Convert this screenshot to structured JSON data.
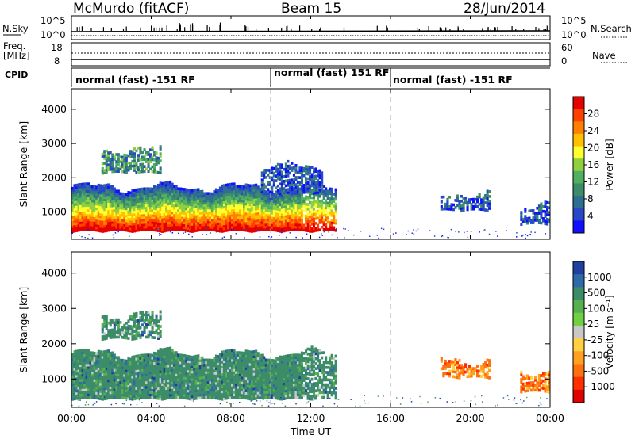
{
  "header": {
    "station": "McMurdo (fitACF)",
    "beam": "Beam 15",
    "date": "28/Jun/2014"
  },
  "panels": {
    "nsky": {
      "left_label": "N.Sky",
      "left_ticks": [
        "10^5",
        "10^0"
      ],
      "right_label": "N.Search",
      "right_ticks": [
        "10^5",
        "10^0"
      ]
    },
    "freq": {
      "left_label_1": "Freq.",
      "left_label_2": "[MHz]",
      "left_ticks": [
        "18",
        "8"
      ],
      "right_label": "Nave",
      "right_ticks": [
        "60",
        "0"
      ]
    },
    "cpid": {
      "label": "CPID",
      "segments": [
        {
          "text": "normal (fast) -151 RF",
          "start_h": 0,
          "end_h": 10
        },
        {
          "text": "normal (fast) 151 RF",
          "start_h": 10,
          "end_h": 16
        },
        {
          "text": "normal (fast) -151 RF",
          "start_h": 16,
          "end_h": 24
        }
      ]
    }
  },
  "colorbars": {
    "power": {
      "title": "Power [dB]",
      "ticks": [
        "28",
        "24",
        "20",
        "16",
        "12",
        "8",
        "4"
      ],
      "colors": [
        "#e60000",
        "#ff4000",
        "#ff8000",
        "#ffc000",
        "#ffff30",
        "#90d040",
        "#50b060",
        "#3c8c6a",
        "#2e6e90",
        "#2848c8",
        "#1010ff"
      ]
    },
    "velocity": {
      "title": "Velocity [m s⁻¹]",
      "ticks": [
        "1000",
        "500",
        "100",
        "25",
        "-25",
        "-100",
        "-500",
        "-1000"
      ],
      "colors": [
        "#2040a0",
        "#2e6aa8",
        "#3c8c6a",
        "#56b050",
        "#70d040",
        "#c8c8c8",
        "#ffd040",
        "#ffa020",
        "#ff7010",
        "#ff3000",
        "#e00000"
      ]
    }
  },
  "chart_data": {
    "type": "heatmap",
    "xlabel": "Time UT",
    "ylabel": "Slant Range [km]",
    "x_ticks": [
      "00:00",
      "04:00",
      "08:00",
      "12:00",
      "16:00",
      "20:00",
      "00:00"
    ],
    "y_ticks": [
      "1000",
      "2000",
      "3000",
      "4000"
    ],
    "xlim_hours": [
      0,
      24
    ],
    "ylim_km": [
      200,
      4600
    ],
    "grid": false,
    "series": [
      {
        "field": "power",
        "regions": [
          {
            "t0": 0.0,
            "t1": 13.2,
            "r0": 400,
            "r1": 1700,
            "level": "high"
          },
          {
            "t0": 1.5,
            "t1": 4.5,
            "r0": 2100,
            "r1": 2800,
            "level": "medium"
          },
          {
            "t0": 9.5,
            "t1": 12.5,
            "r0": 1500,
            "r1": 2300,
            "level": "low"
          },
          {
            "t0": 18.5,
            "t1": 21.0,
            "r0": 1000,
            "r1": 1500,
            "level": "low"
          },
          {
            "t0": 22.5,
            "t1": 24.0,
            "r0": 600,
            "r1": 1200,
            "level": "low"
          }
        ]
      },
      {
        "field": "velocity",
        "regions": [
          {
            "t0": 0.0,
            "t1": 13.2,
            "r0": 400,
            "r1": 1700,
            "level": "positive"
          },
          {
            "t0": 1.5,
            "t1": 4.5,
            "r0": 2100,
            "r1": 2800,
            "level": "positive"
          },
          {
            "t0": 18.5,
            "t1": 21.0,
            "r0": 1000,
            "r1": 1500,
            "level": "negative"
          },
          {
            "t0": 22.5,
            "t1": 24.0,
            "r0": 600,
            "r1": 1200,
            "level": "negative"
          }
        ]
      }
    ]
  }
}
